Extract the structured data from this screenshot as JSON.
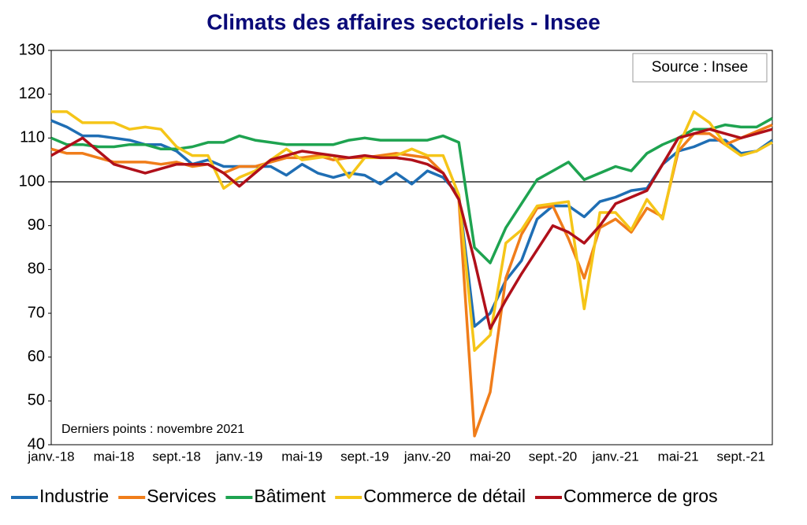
{
  "chart_data": {
    "type": "line",
    "title": "Climats des affaires sectoriels - Insee",
    "source": "Source : Insee",
    "note": "Derniers points : novembre 2021",
    "categories": [
      "janv.-18",
      null,
      null,
      null,
      "mai-18",
      null,
      null,
      null,
      "sept.-18",
      null,
      null,
      null,
      "janv.-19",
      null,
      null,
      null,
      "mai-19",
      null,
      null,
      null,
      "sept.-19",
      null,
      null,
      null,
      "janv.-20",
      null,
      null,
      null,
      "mai-20",
      null,
      null,
      null,
      "sept.-20",
      null,
      null,
      null,
      "janv.-21",
      null,
      null,
      null,
      "mai-21",
      null,
      null,
      null,
      "sept.-21",
      null,
      null
    ],
    "ylim": [
      40,
      130
    ],
    "yticks": [
      40,
      50,
      60,
      70,
      80,
      90,
      100,
      110,
      120,
      130
    ],
    "hline": 100,
    "grid": false,
    "series": [
      {
        "name": "Industrie",
        "color": "#1f6eb4",
        "values": [
          114,
          112.5,
          110.5,
          110.5,
          110,
          109.5,
          108.5,
          108.5,
          107,
          104,
          105,
          103.5,
          103.5,
          103.5,
          103.5,
          101.5,
          104,
          102,
          101,
          102,
          101.5,
          99.5,
          102,
          99.5,
          102.5,
          101,
          97,
          67,
          70,
          77.5,
          82,
          91.5,
          94.5,
          94.5,
          92,
          95.5,
          96.5,
          98,
          98.5,
          104,
          107,
          108,
          109.5,
          109.5,
          106.5,
          107,
          109.5
        ]
      },
      {
        "name": "Services",
        "color": "#f07d1a",
        "values": [
          107.5,
          106.5,
          106.5,
          105.5,
          104.5,
          104.5,
          104.5,
          104,
          104.5,
          103.5,
          104,
          102,
          103.5,
          103.5,
          104.5,
          105.5,
          105.5,
          106,
          105,
          105.5,
          105.5,
          106,
          106.5,
          106,
          105.5,
          102,
          96,
          42,
          52,
          78,
          88,
          94,
          94.5,
          87,
          78,
          89.5,
          91.5,
          88.5,
          94,
          92,
          107,
          111,
          111,
          108.5,
          110,
          111.5,
          113
        ]
      },
      {
        "name": "Bâtiment",
        "color": "#1ea350",
        "values": [
          110,
          108.5,
          108.5,
          108,
          108,
          108.5,
          108.5,
          107.5,
          107.5,
          108,
          109,
          109,
          110.5,
          109.5,
          109,
          108.5,
          108.5,
          108.5,
          108.5,
          109.5,
          110,
          109.5,
          109.5,
          109.5,
          109.5,
          110.5,
          109,
          85,
          81.5,
          89.5,
          95,
          100.5,
          102.5,
          104.5,
          100.5,
          102,
          103.5,
          102.5,
          106.5,
          108.5,
          110,
          112,
          112,
          113,
          112.5,
          112.5,
          114.5
        ]
      },
      {
        "name": "Commerce de détail",
        "color": "#f5c518",
        "values": [
          116,
          116,
          113.5,
          113.5,
          113.5,
          112,
          112.5,
          112,
          108,
          106,
          106,
          98.5,
          101,
          102.5,
          105,
          107.5,
          105,
          105.5,
          106,
          101,
          105.5,
          105.5,
          106,
          107.5,
          106,
          106,
          97,
          61.5,
          65,
          86,
          89,
          94.5,
          95,
          95.5,
          71,
          93,
          93,
          89,
          96,
          91.5,
          108,
          116,
          113.5,
          108.5,
          106,
          107,
          109
        ]
      },
      {
        "name": "Commerce de gros",
        "color": "#b0101a",
        "values": [
          106,
          108,
          110,
          107,
          104,
          103,
          102,
          103,
          104,
          104,
          104,
          102,
          99,
          102,
          105,
          106,
          107,
          106.5,
          106,
          105.5,
          106,
          105.5,
          105.5,
          105,
          104,
          102,
          96,
          82,
          66.5,
          73,
          79,
          84.5,
          90,
          88.5,
          86,
          90,
          95,
          96.5,
          98,
          104,
          110,
          111,
          112,
          111,
          110,
          111,
          112
        ]
      }
    ]
  }
}
